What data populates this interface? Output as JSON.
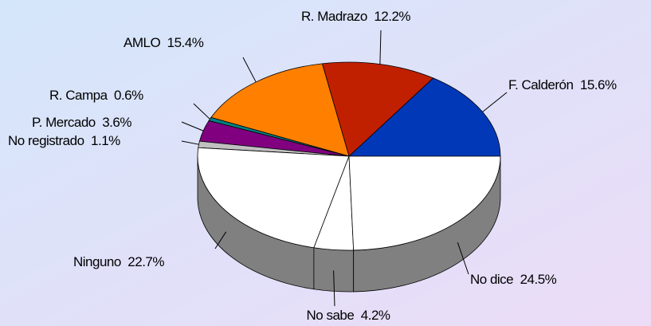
{
  "chart_data": {
    "type": "pie3d",
    "categories": [
      "F. Calderón",
      "R. Madrazo",
      "AMLO",
      "R. Campa",
      "P. Mercado",
      "No registrado",
      "Ninguno",
      "No sabe",
      "No dice"
    ],
    "values": [
      15.6,
      12.2,
      15.4,
      0.6,
      3.6,
      1.1,
      22.7,
      4.2,
      24.5
    ],
    "value_labels": [
      "15.6%",
      "12.2%",
      "15.4%",
      "0.6%",
      "3.6%",
      "1.1%",
      "22.7%",
      "4.2%",
      "24.5%"
    ],
    "colors": [
      "#0038b8",
      "#c02000",
      "#ff8000",
      "#008080",
      "#800080",
      "#c0c0c0",
      "#ffffff",
      "#ffffff",
      "#ffffff"
    ]
  }
}
